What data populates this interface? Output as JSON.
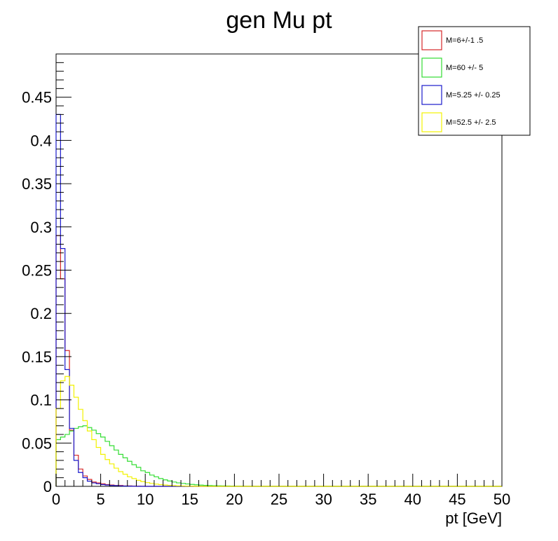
{
  "chart_data": {
    "type": "histogram",
    "title": "gen Mu pt",
    "xlabel": "pt [GeV]",
    "ylabel": "",
    "xlim": [
      0,
      50
    ],
    "ylim": [
      0,
      0.5
    ],
    "bin_width": 0.5,
    "grid": false,
    "legend_position": "top-right",
    "x_tick_labels": [
      "0",
      "5",
      "10",
      "15",
      "20",
      "25",
      "30",
      "35",
      "40",
      "45",
      "50"
    ],
    "y_tick_labels": [
      "0",
      "0.05",
      "0.1",
      "0.15",
      "0.2",
      "0.25",
      "0.3",
      "0.35",
      "0.4",
      "0.45"
    ],
    "series": [
      {
        "name": "M=6+/-1 .5",
        "color": "#d62728",
        "values": [
          0.29,
          0.24,
          0.157,
          0.065,
          0.036,
          0.02,
          0.012,
          0.008,
          0.005,
          0.004,
          0.003,
          0.002,
          0.0015,
          0.001,
          0.001,
          0.0005,
          0.0005,
          0.0003,
          0.0002,
          0.0001
        ]
      },
      {
        "name": "M=60 +/- 5",
        "color": "#33dd33",
        "values": [
          0.054,
          0.057,
          0.06,
          0.064,
          0.067,
          0.069,
          0.07,
          0.068,
          0.065,
          0.061,
          0.057,
          0.052,
          0.047,
          0.042,
          0.037,
          0.033,
          0.029,
          0.025,
          0.022,
          0.018,
          0.016,
          0.013,
          0.011,
          0.009,
          0.0075,
          0.0062,
          0.005,
          0.004,
          0.0034,
          0.0028,
          0.0022,
          0.0018,
          0.0014,
          0.0011,
          0.0009,
          0.0007,
          0.0006,
          0.0005,
          0.0004,
          0.0003,
          0.0002,
          0.0002,
          0.0001,
          0.0001
        ]
      },
      {
        "name": "M=5.25 +/- 0.25",
        "color": "#1a1acc",
        "values": [
          0.43,
          0.275,
          0.135,
          0.067,
          0.03,
          0.016,
          0.01,
          0.006,
          0.004,
          0.003,
          0.002,
          0.0015,
          0.001,
          0.0008,
          0.0005,
          0.0003,
          0.0002,
          0.0001
        ]
      },
      {
        "name": "M=52.5 +/- 2.5",
        "color": "#f2f200",
        "values": [
          0.09,
          0.122,
          0.127,
          0.117,
          0.103,
          0.089,
          0.076,
          0.064,
          0.054,
          0.045,
          0.037,
          0.031,
          0.026,
          0.021,
          0.017,
          0.014,
          0.011,
          0.009,
          0.007,
          0.0055,
          0.0043,
          0.0034,
          0.0026,
          0.002,
          0.0015,
          0.0011,
          0.0008,
          0.0006,
          0.0004,
          0.0003,
          0.0002,
          0.0001
        ]
      }
    ]
  }
}
